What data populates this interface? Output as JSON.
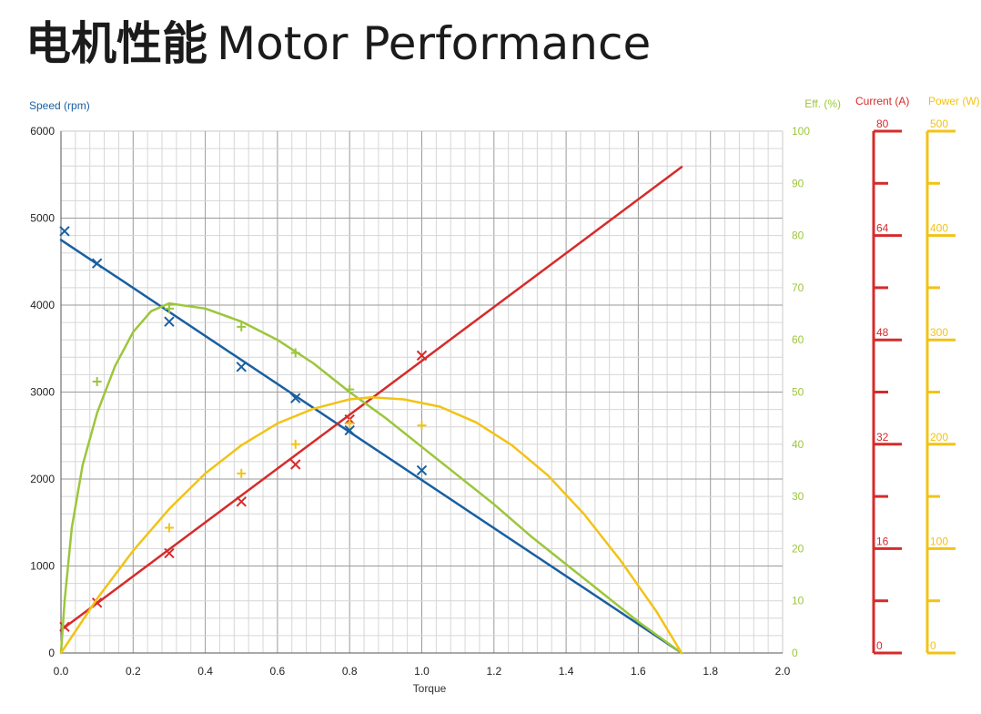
{
  "title_cn": "电机性能",
  "title_en": "Motor Performance",
  "chart_data": {
    "type": "line",
    "xlabel": "Torque",
    "xlim": [
      0,
      2.0
    ],
    "xticks": [
      "0.0",
      "0.2",
      "0.4",
      "0.6",
      "0.8",
      "1.0",
      "1.2",
      "1.4",
      "1.6",
      "1.8",
      "2.0"
    ],
    "grid": true,
    "axes": {
      "speed": {
        "label": "Speed (rpm)",
        "range": [
          0,
          6000
        ],
        "ticks": [
          "0",
          "1000",
          "2000",
          "3000",
          "4000",
          "5000",
          "6000"
        ],
        "color": "#1a5fa0"
      },
      "eff": {
        "label": "Eff. (%)",
        "range": [
          0,
          100
        ],
        "ticks": [
          "0",
          "10",
          "20",
          "30",
          "40",
          "50",
          "60",
          "70",
          "80",
          "90",
          "100"
        ],
        "color": "#9cc63b"
      },
      "current": {
        "label": "Current (A)",
        "range": [
          0,
          80
        ],
        "ticks": [
          "0",
          "16",
          "32",
          "48",
          "64",
          "80"
        ],
        "color": "#d62b2b"
      },
      "power": {
        "label": "Power (W)",
        "range": [
          0,
          500
        ],
        "ticks": [
          "0",
          "100",
          "200",
          "300",
          "400",
          "500"
        ],
        "color": "#f2c316"
      }
    },
    "series": [
      {
        "axis": "speed",
        "color": "#1a5fa0",
        "marker": "x",
        "line": [
          [
            0.0,
            4750
          ],
          [
            1.72,
            0
          ]
        ],
        "points": [
          [
            0.01,
            4850
          ],
          [
            0.1,
            4480
          ],
          [
            0.3,
            3810
          ],
          [
            0.5,
            3290
          ],
          [
            0.65,
            2930
          ],
          [
            0.8,
            2560
          ],
          [
            1.0,
            2100
          ]
        ]
      },
      {
        "axis": "current",
        "color": "#d62b2b",
        "marker": "x",
        "line": [
          [
            0.0,
            3.5
          ],
          [
            1.72,
            74.5
          ]
        ],
        "points": [
          [
            0.01,
            4.0
          ],
          [
            0.1,
            7.7
          ],
          [
            0.3,
            15.3
          ],
          [
            0.5,
            23.2
          ],
          [
            0.65,
            28.9
          ],
          [
            0.8,
            35.8
          ],
          [
            1.0,
            45.6
          ]
        ]
      },
      {
        "axis": "eff",
        "color": "#9cc63b",
        "marker": "plus",
        "line": [
          [
            0.0,
            0
          ],
          [
            0.01,
            10
          ],
          [
            0.03,
            24
          ],
          [
            0.06,
            36
          ],
          [
            0.1,
            46
          ],
          [
            0.15,
            55
          ],
          [
            0.2,
            61.5
          ],
          [
            0.25,
            65.5
          ],
          [
            0.3,
            67
          ],
          [
            0.4,
            66
          ],
          [
            0.5,
            63.5
          ],
          [
            0.6,
            60
          ],
          [
            0.7,
            55.5
          ],
          [
            0.8,
            50
          ],
          [
            0.9,
            45
          ],
          [
            1.0,
            39.5
          ],
          [
            1.1,
            34
          ],
          [
            1.2,
            28.5
          ],
          [
            1.3,
            22.5
          ],
          [
            1.4,
            17
          ],
          [
            1.5,
            11.5
          ],
          [
            1.6,
            6
          ],
          [
            1.72,
            0
          ]
        ],
        "points": [
          [
            0.1,
            52
          ],
          [
            0.3,
            66
          ],
          [
            0.5,
            62.5
          ],
          [
            0.65,
            57.5
          ],
          [
            0.8,
            50.5
          ]
        ]
      },
      {
        "axis": "power",
        "color": "#f2c316",
        "marker": "plus",
        "line": [
          [
            0.0,
            0
          ],
          [
            0.1,
            52
          ],
          [
            0.2,
            98
          ],
          [
            0.3,
            138
          ],
          [
            0.4,
            172
          ],
          [
            0.5,
            199
          ],
          [
            0.6,
            220
          ],
          [
            0.7,
            234
          ],
          [
            0.8,
            243
          ],
          [
            0.86,
            245
          ],
          [
            0.95,
            243
          ],
          [
            1.05,
            236
          ],
          [
            1.15,
            221
          ],
          [
            1.25,
            199
          ],
          [
            1.35,
            170
          ],
          [
            1.45,
            133
          ],
          [
            1.55,
            89
          ],
          [
            1.65,
            40
          ],
          [
            1.72,
            0
          ]
        ],
        "points": [
          [
            0.3,
            120
          ],
          [
            0.5,
            172
          ],
          [
            0.65,
            200
          ],
          [
            0.8,
            220
          ],
          [
            1.0,
            218
          ]
        ]
      }
    ]
  }
}
